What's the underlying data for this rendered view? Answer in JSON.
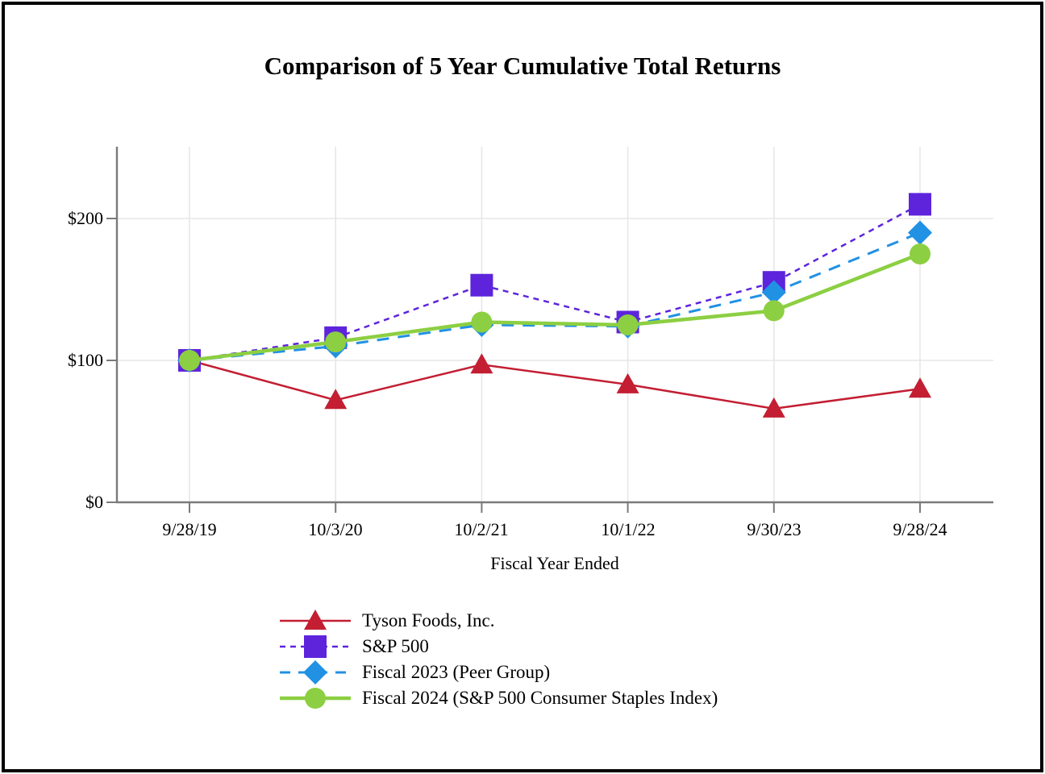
{
  "chart_data": {
    "type": "line",
    "title": "Comparison of 5 Year Cumulative Total Returns",
    "xlabel": "Fiscal Year Ended",
    "ylabel": "",
    "x_labels": [
      "9/28/19",
      "10/3/20",
      "10/2/21",
      "10/1/22",
      "9/30/23",
      "9/28/24"
    ],
    "y_ticks": [
      "$0",
      "$100",
      "$200"
    ],
    "y_tick_values": [
      0,
      100,
      200
    ],
    "ylim": [
      0,
      250
    ],
    "grid": true,
    "legend_position": "bottom-left",
    "series": [
      {
        "name": "Tyson Foods, Inc.",
        "marker": "triangle",
        "line_style": "solid",
        "color": "#c31e32",
        "values": [
          100,
          72,
          97,
          83,
          66,
          80
        ]
      },
      {
        "name": "S&P 500",
        "marker": "square",
        "line_style": "dash-short",
        "color": "#5d24dc",
        "values": [
          100,
          116,
          153,
          127,
          155,
          210
        ]
      },
      {
        "name": "Fiscal 2023 (Peer Group)",
        "marker": "diamond",
        "line_style": "dash-long",
        "color": "#2191e4",
        "values": [
          100,
          110,
          125,
          124,
          148,
          190
        ]
      },
      {
        "name": "Fiscal 2024 (S&P 500 Consumer Staples Index)",
        "marker": "circle",
        "line_style": "solid",
        "color": "#8ccf42",
        "values": [
          100,
          113,
          127,
          125,
          135,
          175
        ]
      }
    ],
    "style": {
      "axis_color": "#7a7a7a",
      "grid_color": "#e7e7e7"
    }
  }
}
